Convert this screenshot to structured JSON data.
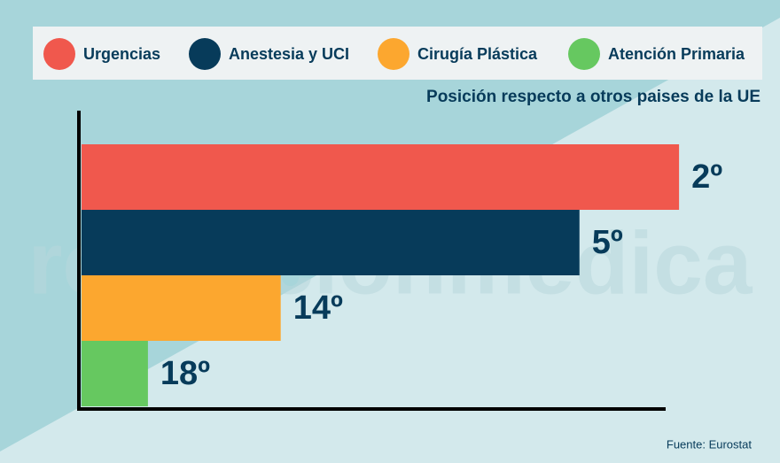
{
  "chart_data": {
    "type": "bar",
    "orientation": "horizontal",
    "subtitle": "Posición respecto a otros paises de la UE",
    "categories": [
      "Urgencias",
      "Anestesia y UCI",
      "Cirugía Plástica",
      "Atención Primaria"
    ],
    "values": [
      2,
      5,
      14,
      18
    ],
    "value_labels": [
      "2º",
      "5º",
      "14º",
      "18º"
    ],
    "colors": [
      "#f0584d",
      "#073b5a",
      "#fca72f",
      "#66c860"
    ],
    "xlim": [
      20,
      0
    ],
    "source": "Fuente: Eurostat",
    "watermark": "redaccionmedica"
  }
}
